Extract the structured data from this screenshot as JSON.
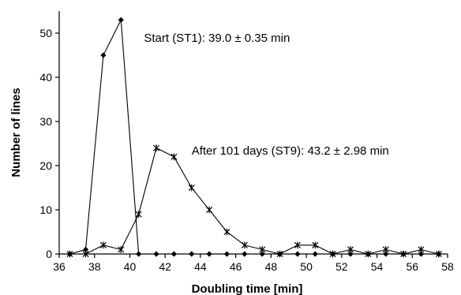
{
  "chart_data": {
    "type": "line",
    "xlabel": "Doubling time [min]",
    "ylabel": "Number of lines",
    "xlim": [
      36,
      58
    ],
    "ylim": [
      0,
      55
    ],
    "xticks": [
      36,
      38,
      40,
      42,
      44,
      46,
      48,
      50,
      52,
      54,
      56,
      58
    ],
    "yticks": [
      0,
      10,
      20,
      30,
      40,
      50
    ],
    "grid": false,
    "series": [
      {
        "marker": "diamond",
        "x": [
          36.6,
          37.5,
          38.5,
          39.5,
          40.5,
          41.5,
          42.5,
          43.5,
          44.5,
          45.5,
          46.5,
          47.5,
          48.5,
          49.5,
          50.5,
          51.5,
          52.5,
          53.5,
          54.5,
          55.5,
          56.5,
          57.5
        ],
        "y": [
          0,
          1,
          45,
          53,
          0,
          0,
          0,
          0,
          0,
          0,
          0,
          0,
          0,
          0,
          0,
          0,
          0,
          0,
          0,
          0,
          0,
          0
        ]
      },
      {
        "marker": "star",
        "x": [
          36.6,
          37.5,
          38.5,
          39.5,
          40.5,
          41.5,
          42.5,
          43.5,
          44.5,
          45.5,
          46.5,
          47.5,
          48.5,
          49.5,
          50.5,
          51.5,
          52.5,
          53.5,
          54.5,
          55.5,
          56.5,
          57.5
        ],
        "y": [
          0,
          0,
          2,
          1,
          9,
          24,
          22,
          15,
          10,
          5,
          2,
          1,
          0,
          2,
          2,
          0,
          1,
          0,
          1,
          0,
          1,
          0
        ]
      }
    ],
    "annotations": [
      {
        "text": "Start (ST1): 39.0 ± 0.35 min",
        "x": 40.8,
        "y": 48
      },
      {
        "text": "After 101 days (ST9): 43.2 ± 2.98 min",
        "x": 43.5,
        "y": 22.5
      }
    ]
  }
}
